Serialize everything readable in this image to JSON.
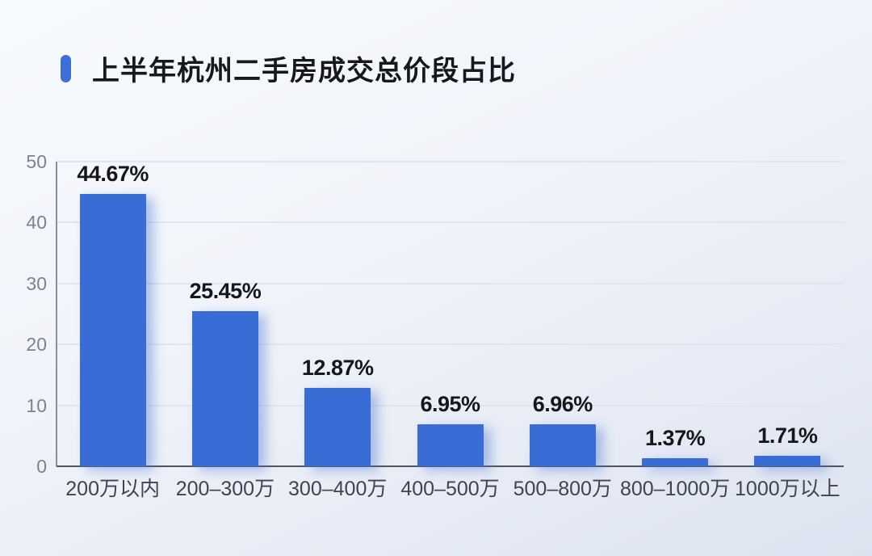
{
  "header": {
    "title": "上半年杭州二手房成交总价段占比"
  },
  "chart_data": {
    "type": "bar",
    "title": "上半年杭州二手房成交总价段占比",
    "categories": [
      "200万以内",
      "200–300万",
      "300–400万",
      "400–500万",
      "500–800万",
      "800–1000万",
      "1000万以上"
    ],
    "values": [
      44.67,
      25.45,
      12.87,
      6.95,
      6.96,
      1.37,
      1.71
    ],
    "value_labels": [
      "44.67%",
      "25.45%",
      "12.87%",
      "6.95%",
      "6.96%",
      "1.37%",
      "1.71%"
    ],
    "xlabel": "",
    "ylabel": "",
    "ylim": [
      0,
      50
    ],
    "yticks": [
      0,
      10,
      20,
      30,
      40,
      50
    ],
    "ytick_labels": [
      "0",
      "10",
      "20",
      "30",
      "40",
      "50"
    ],
    "grid": true,
    "legend": "none",
    "colors": {
      "bar": "#3a6cd6",
      "accent": "#3e6fd8",
      "gridline": "#e0e5ef",
      "baseline": "#50555f",
      "y_axis": "#8a909b",
      "value_label": "#15171c",
      "x_label": "#3e4450",
      "y_label": "#7d838d"
    }
  }
}
